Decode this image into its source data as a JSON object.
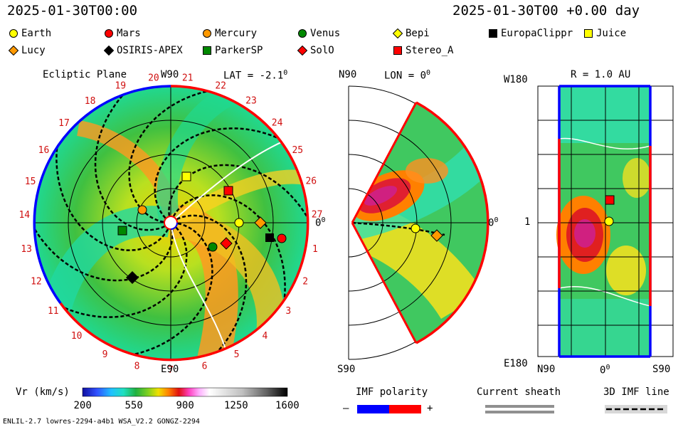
{
  "header": {
    "datetime_left": "2025-01-30T00:00",
    "datetime_right": "2025-01-30T00 +0.00 day"
  },
  "legend": [
    {
      "name": "Earth",
      "shape": "circle",
      "color": "#ffff00"
    },
    {
      "name": "Mars",
      "shape": "circle",
      "color": "#ff0000"
    },
    {
      "name": "Mercury",
      "shape": "circle",
      "color": "#ff9900"
    },
    {
      "name": "Venus",
      "shape": "circle",
      "color": "#008800"
    },
    {
      "name": "Bepi",
      "shape": "diamond",
      "color": "#ffff00"
    },
    {
      "name": "EuropaClippr",
      "shape": "square",
      "color": "#000000"
    },
    {
      "name": "Juice",
      "shape": "square",
      "color": "#ffff00"
    },
    {
      "name": "Lucy",
      "shape": "diamond",
      "color": "#ff9900"
    },
    {
      "name": "OSIRIS-APEX",
      "shape": "diamond",
      "color": "#000000"
    },
    {
      "name": "ParkerSP",
      "shape": "square",
      "color": "#008800"
    },
    {
      "name": "SolO",
      "shape": "diamond",
      "color": "#ff0000"
    },
    {
      "name": "Stereo_A",
      "shape": "square",
      "color": "#ff0000"
    }
  ],
  "panels": {
    "ecliptic": {
      "title": "Ecliptic Plane",
      "top_label": "W90",
      "bottom_label": "E90",
      "right_label": "0",
      "right_label_sup": "0",
      "lat_label": "LAT = -2.1",
      "lat_sup": "0",
      "carrington_ticks": [
        "1",
        "2",
        "3",
        "4",
        "5",
        "6",
        "7",
        "8",
        "9",
        "10",
        "11",
        "12",
        "13",
        "14",
        "15",
        "16",
        "17",
        "18",
        "19",
        "20",
        "21",
        "22",
        "23",
        "24",
        "25",
        "26",
        "27"
      ]
    },
    "meridional": {
      "top_label": "N90",
      "bottom_label": "S90",
      "lon_label": "LON = 0",
      "lon_sup": "0",
      "right_label": "0",
      "right_label_sup": "0"
    },
    "radial": {
      "title": "R = 1.0 AU",
      "top_left_label": "W180",
      "bottom_left_label": "E180",
      "mid_label": "1",
      "bottom_left": "N90",
      "bottom_mid": "0",
      "bottom_mid_sup": "0",
      "bottom_right": "S90"
    }
  },
  "colorbar": {
    "label": "Vr (km/s)",
    "ticks": [
      "200",
      "550",
      "900",
      "1250",
      "1600"
    ],
    "vmin": 200,
    "vmax": 1600
  },
  "imf_polarity": {
    "label": "IMF polarity",
    "minus": "–",
    "plus": "+",
    "neg_color": "#0000ff",
    "pos_color": "#ff0000"
  },
  "current_sheath": {
    "label": "Current sheath"
  },
  "imf_line": {
    "label": "3D IMF line"
  },
  "footer": {
    "model": "ENLIL-2.7 lowres-2294-a4b1 WSA_V2.2 GONGZ-2294"
  }
}
